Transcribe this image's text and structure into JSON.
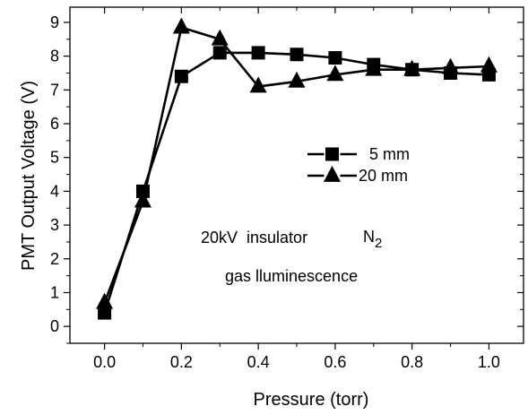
{
  "chart_data": {
    "type": "line",
    "xlabel": "Pressure (torr)",
    "ylabel": "PMT Output Voltage (V)",
    "xlim": [
      -0.09,
      1.09
    ],
    "ylim": [
      -0.5,
      9.45
    ],
    "x_ticks": [
      "0.0",
      "0.2",
      "0.4",
      "0.6",
      "0.8",
      "1.0"
    ],
    "y_ticks": [
      "0",
      "1",
      "2",
      "3",
      "4",
      "5",
      "6",
      "7",
      "8",
      "9"
    ],
    "grid": false,
    "legend_position": "center-right",
    "series": [
      {
        "name": "5 mm",
        "marker": "square",
        "color": "#000000",
        "x": [
          0.0,
          0.1,
          0.2,
          0.3,
          0.4,
          0.5,
          0.6,
          0.7,
          0.8,
          0.9,
          1.0
        ],
        "y": [
          0.4,
          4.0,
          7.4,
          8.1,
          8.1,
          8.05,
          7.95,
          7.75,
          7.6,
          7.5,
          7.45
        ]
      },
      {
        "name": "20 mm",
        "marker": "triangle",
        "color": "#000000",
        "x": [
          0.0,
          0.1,
          0.2,
          0.3,
          0.4,
          0.5,
          0.6,
          0.7,
          0.8,
          0.9,
          1.0
        ],
        "y": [
          0.7,
          3.7,
          8.85,
          8.5,
          7.1,
          7.25,
          7.45,
          7.6,
          7.6,
          7.65,
          7.7
        ]
      }
    ],
    "annotation": {
      "line1": "20kV  insulator",
      "gas": "N",
      "gas_sub": "2",
      "line2": "gas lluminescence"
    }
  }
}
